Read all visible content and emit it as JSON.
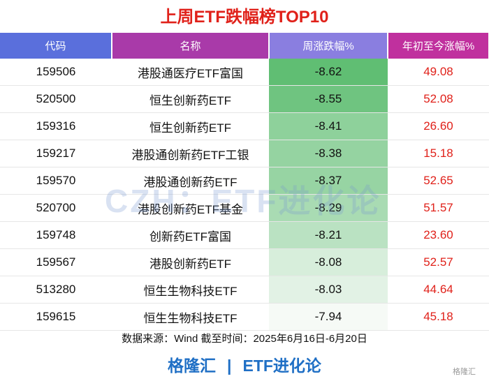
{
  "title": "上周ETF跌幅榜TOP10",
  "table": {
    "header": [
      "代码",
      "名称",
      "周涨跌幅%",
      "年初至今涨幅%"
    ],
    "rows": [
      [
        "159506",
        "港股通医疗ETF富国",
        "-8.62",
        "49.08"
      ],
      [
        "520500",
        "恒生创新药ETF",
        "-8.55",
        "52.08"
      ],
      [
        "159316",
        "恒生创新药ETF",
        "-8.41",
        "26.60"
      ],
      [
        "159217",
        "港股通创新药ETF工银",
        "-8.38",
        "15.18"
      ],
      [
        "159570",
        "港股通创新药ETF",
        "-8.37",
        "52.65"
      ],
      [
        "520700",
        "港股创新药ETF基金",
        "-8.29",
        "51.57"
      ],
      [
        "159748",
        "创新药ETF富国",
        "-8.21",
        "23.60"
      ],
      [
        "159567",
        "港股创新药ETF",
        "-8.08",
        "52.57"
      ],
      [
        "513280",
        "恒生生物科技ETF",
        "-8.03",
        "44.64"
      ],
      [
        "159615",
        "恒生生物科技ETF",
        "-7.94",
        "45.18"
      ]
    ]
  },
  "watermark": "CZH：ETF进化论",
  "source": "数据来源：Wind 截至时间：2025年6月16日-6月20日",
  "footer": {
    "brand": "格隆汇",
    "separator": "|",
    "column": "ETF进化论"
  },
  "logo": "格隆汇"
}
